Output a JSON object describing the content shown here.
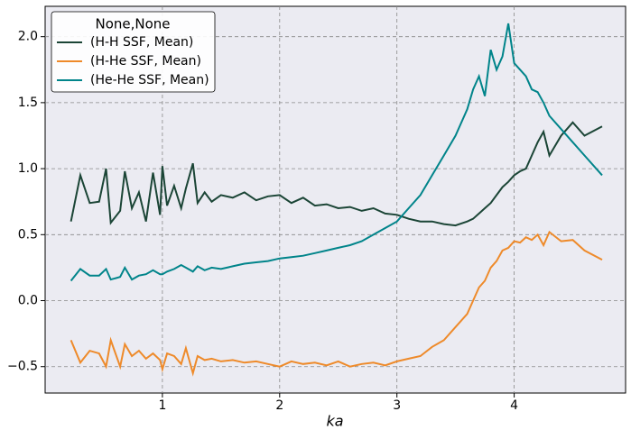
{
  "chart_data": {
    "type": "line",
    "xlabel": "ka",
    "legend_title": "None,None",
    "legend_loc": "upper left",
    "grid": true,
    "xlim": [
      0,
      4.95
    ],
    "ylim": [
      -0.7,
      2.23
    ],
    "xticks": [
      1,
      2,
      3,
      4
    ],
    "yticks": [
      {
        "value": -0.5,
        "label": "−0.5"
      },
      {
        "value": 0,
        "label": "0.0"
      },
      0.5,
      {
        "value": 1,
        "label": "1.0"
      },
      1.5,
      {
        "value": 2,
        "label": "2.0"
      }
    ],
    "x": [
      0.22,
      0.3,
      0.38,
      0.46,
      0.52,
      0.56,
      0.64,
      0.68,
      0.74,
      0.8,
      0.86,
      0.92,
      0.98,
      1.0,
      1.04,
      1.1,
      1.16,
      1.2,
      1.26,
      1.3,
      1.36,
      1.42,
      1.5,
      1.6,
      1.7,
      1.8,
      1.9,
      2.0,
      2.1,
      2.2,
      2.3,
      2.4,
      2.5,
      2.6,
      2.7,
      2.8,
      2.9,
      3.0,
      3.1,
      3.2,
      3.3,
      3.4,
      3.5,
      3.6,
      3.65,
      3.7,
      3.75,
      3.8,
      3.85,
      3.9,
      3.95,
      4.0,
      4.05,
      4.1,
      4.15,
      4.2,
      4.25,
      4.3,
      4.4,
      4.5,
      4.6,
      4.75
    ],
    "series": [
      {
        "name": "(H-H SSF, Mean)",
        "color": "#1b4536",
        "values": [
          0.6,
          0.95,
          0.74,
          0.75,
          1.0,
          0.59,
          0.68,
          0.98,
          0.7,
          0.82,
          0.6,
          0.97,
          0.65,
          1.02,
          0.72,
          0.87,
          0.7,
          0.85,
          1.04,
          0.74,
          0.82,
          0.75,
          0.8,
          0.78,
          0.82,
          0.76,
          0.79,
          0.8,
          0.74,
          0.78,
          0.72,
          0.73,
          0.7,
          0.71,
          0.68,
          0.7,
          0.66,
          0.65,
          0.62,
          0.6,
          0.6,
          0.58,
          0.57,
          0.6,
          0.62,
          0.66,
          0.7,
          0.74,
          0.8,
          0.86,
          0.9,
          0.95,
          0.98,
          1.0,
          1.1,
          1.2,
          1.28,
          1.1,
          1.25,
          1.35,
          1.25,
          1.32
        ]
      },
      {
        "name": "(H-He SSF, Mean)",
        "color": "#ee8a2a",
        "values": [
          -0.3,
          -0.47,
          -0.38,
          -0.4,
          -0.5,
          -0.3,
          -0.5,
          -0.33,
          -0.42,
          -0.38,
          -0.44,
          -0.4,
          -0.45,
          -0.52,
          -0.4,
          -0.42,
          -0.48,
          -0.36,
          -0.55,
          -0.42,
          -0.45,
          -0.44,
          -0.46,
          -0.45,
          -0.47,
          -0.46,
          -0.48,
          -0.5,
          -0.46,
          -0.48,
          -0.47,
          -0.49,
          -0.46,
          -0.5,
          -0.48,
          -0.47,
          -0.49,
          -0.46,
          -0.44,
          -0.42,
          -0.35,
          -0.3,
          -0.2,
          -0.1,
          0.0,
          0.1,
          0.15,
          0.25,
          0.3,
          0.38,
          0.4,
          0.45,
          0.44,
          0.48,
          0.46,
          0.5,
          0.42,
          0.52,
          0.45,
          0.46,
          0.38,
          0.31
        ]
      },
      {
        "name": "(He-He SSF, Mean)",
        "color": "#00848a",
        "values": [
          0.15,
          0.24,
          0.19,
          0.19,
          0.24,
          0.16,
          0.18,
          0.25,
          0.16,
          0.19,
          0.2,
          0.23,
          0.2,
          0.2,
          0.22,
          0.24,
          0.27,
          0.25,
          0.22,
          0.26,
          0.23,
          0.25,
          0.24,
          0.26,
          0.28,
          0.29,
          0.3,
          0.32,
          0.33,
          0.34,
          0.36,
          0.38,
          0.4,
          0.42,
          0.45,
          0.5,
          0.55,
          0.6,
          0.7,
          0.8,
          0.95,
          1.1,
          1.25,
          1.45,
          1.6,
          1.7,
          1.55,
          1.9,
          1.75,
          1.85,
          2.1,
          1.8,
          1.75,
          1.7,
          1.6,
          1.58,
          1.5,
          1.4,
          1.3,
          1.2,
          1.1,
          0.95
        ]
      }
    ]
  }
}
